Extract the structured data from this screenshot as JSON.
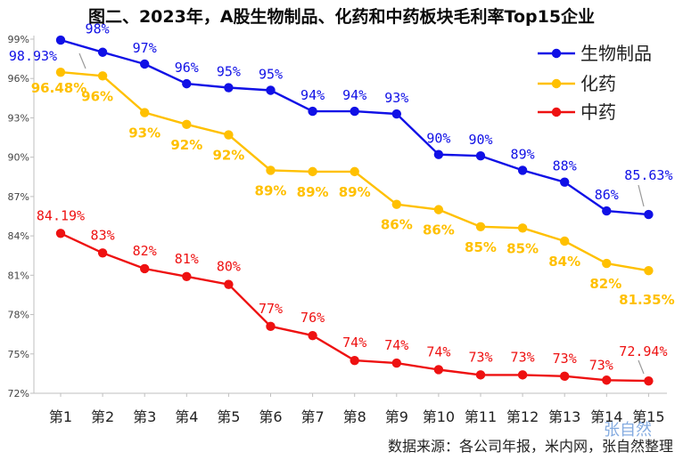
{
  "chart_data": {
    "type": "line",
    "title": "图二、2023年，A股生物制品、化药和中药板块毛利率Top15企业",
    "categories": [
      "第1",
      "第2",
      "第3",
      "第4",
      "第5",
      "第6",
      "第7",
      "第8",
      "第9",
      "第10",
      "第11",
      "第12",
      "第13",
      "第14",
      "第15"
    ],
    "ylim": [
      72,
      99
    ],
    "yticks": [
      "72%",
      "75%",
      "78%",
      "81%",
      "84%",
      "87%",
      "90%",
      "93%",
      "96%",
      "99%"
    ],
    "ytick_values": [
      72,
      75,
      78,
      81,
      84,
      87,
      90,
      93,
      96,
      99
    ],
    "grid": false,
    "legend_position": "top-right",
    "series": [
      {
        "name": "生物制品",
        "color": "#1010e6",
        "values": [
          98.93,
          98.0,
          97.1,
          95.6,
          95.3,
          95.1,
          93.5,
          93.5,
          93.3,
          90.2,
          90.1,
          89.0,
          88.1,
          85.9,
          85.63
        ],
        "labels": [
          "98.93%",
          "98%",
          "97%",
          "96%",
          "95%",
          "95%",
          "94%",
          "94%",
          "93%",
          "90%",
          "90%",
          "89%",
          "88%",
          "86%",
          "85.63%"
        ],
        "label_style": "mono"
      },
      {
        "name": "化药",
        "color": "#ffc000",
        "values": [
          96.48,
          96.2,
          93.4,
          92.5,
          91.7,
          89.0,
          88.9,
          88.9,
          86.4,
          86.0,
          84.7,
          84.6,
          83.6,
          81.9,
          81.35
        ],
        "labels": [
          "96.48%",
          "96%",
          "93%",
          "92%",
          "92%",
          "89%",
          "89%",
          "89%",
          "86%",
          "86%",
          "85%",
          "85%",
          "84%",
          "82%",
          "81.35%"
        ],
        "label_style": "bold"
      },
      {
        "name": "中药",
        "color": "#ee1111",
        "values": [
          84.19,
          82.7,
          81.5,
          80.9,
          80.3,
          77.1,
          76.4,
          74.5,
          74.3,
          73.8,
          73.4,
          73.4,
          73.3,
          73.0,
          72.94
        ],
        "labels": [
          "84.19%",
          "83%",
          "82%",
          "81%",
          "80%",
          "77%",
          "76%",
          "74%",
          "74%",
          "74%",
          "73%",
          "73%",
          "73%",
          "73%",
          "72.94%"
        ],
        "label_style": "mono"
      }
    ]
  },
  "source_note": "数据来源：各公司年报，米内网，张自然整理",
  "watermark": "张自然"
}
